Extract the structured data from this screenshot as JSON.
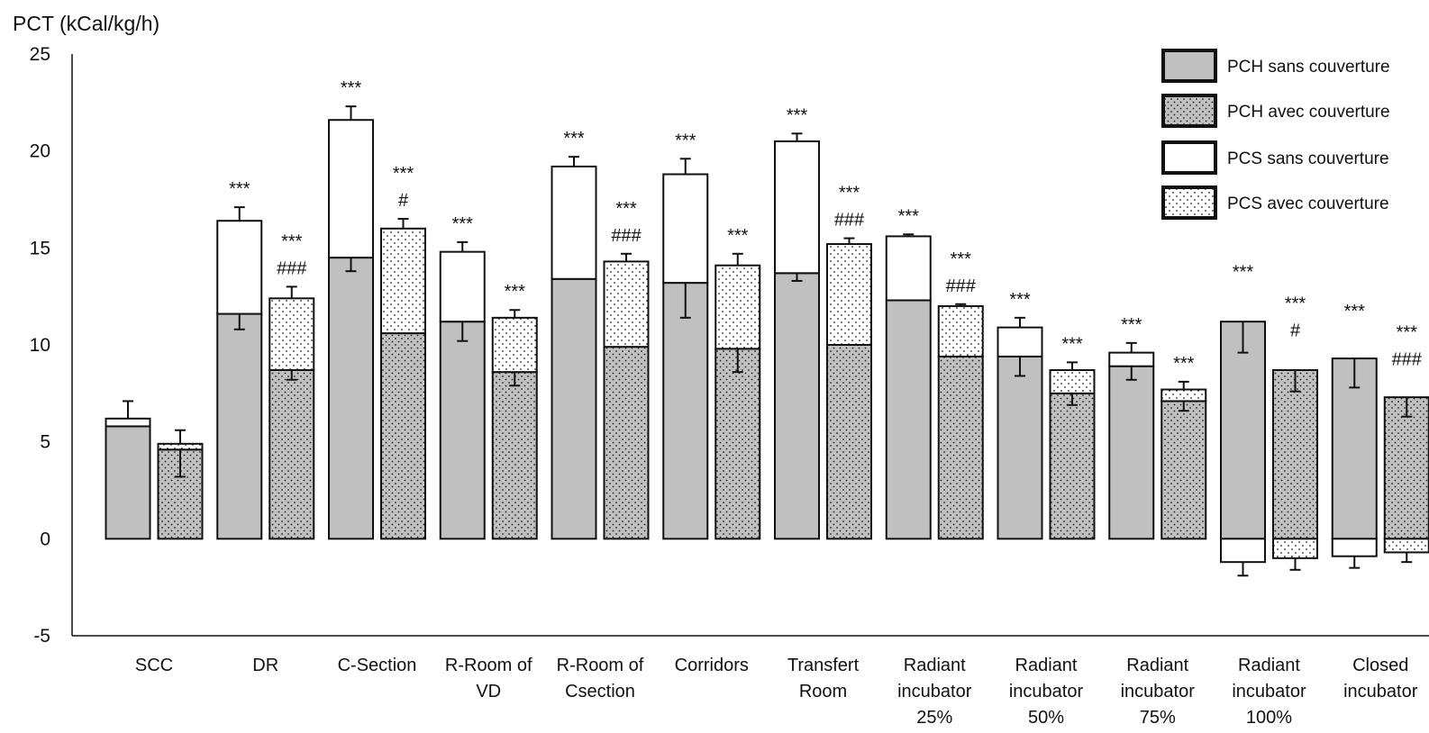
{
  "chart_data": {
    "type": "bar",
    "stacked": true,
    "title": "",
    "ylabel": "PCT (kCal/kg/h)",
    "xlabel": "",
    "ylim": [
      -5,
      25
    ],
    "yticks": [
      -5,
      0,
      5,
      10,
      15,
      20,
      25
    ],
    "grid": false,
    "legend_position": "top-right",
    "colors": {
      "pch_fill": "#c0c0c0",
      "pcs_fill": "#ffffff",
      "stroke": "#111111"
    },
    "categories": [
      "SCC",
      "DR",
      "C-Section",
      "R-Room of VD",
      "R-Room of Csection",
      "Corridors",
      "Transfert Room",
      "Radiant incubator 25%",
      "Radiant incubator 50%",
      "Radiant incubator 75%",
      "Radiant incubator 100%",
      "Closed incubator"
    ],
    "category_label_lines": [
      [
        "SCC"
      ],
      [
        "DR"
      ],
      [
        "C-Section"
      ],
      [
        "R-Room of",
        "VD"
      ],
      [
        "R-Room of",
        "Csection"
      ],
      [
        "Corridors"
      ],
      [
        "Transfert",
        "Room"
      ],
      [
        "Radiant",
        "incubator",
        "25%"
      ],
      [
        "Radiant",
        "incubator",
        "50%"
      ],
      [
        "Radiant",
        "incubator",
        "75%"
      ],
      [
        "Radiant",
        "incubator",
        "100%"
      ],
      [
        "Closed",
        "incubator"
      ]
    ],
    "legend": [
      {
        "key": "pch_sans",
        "label": "PCH sans couverture",
        "fill": "#c0c0c0",
        "pattern": "none"
      },
      {
        "key": "pch_avec",
        "label": "PCH avec couverture",
        "fill": "#c0c0c0",
        "pattern": "dots"
      },
      {
        "key": "pcs_sans",
        "label": "PCS sans couverture",
        "fill": "#ffffff",
        "pattern": "none"
      },
      {
        "key": "pcs_avec",
        "label": "PCS avec couverture",
        "fill": "#ffffff",
        "pattern": "dots"
      }
    ],
    "bars": [
      {
        "category": 0,
        "cover": "sans",
        "pch": 5.8,
        "pch_err": null,
        "pcs": 0.4,
        "pcs_err": 0.9,
        "sig": []
      },
      {
        "category": 0,
        "cover": "avec",
        "pch": 4.6,
        "pch_err": 1.4,
        "pcs": 0.3,
        "pcs_err": 0.7,
        "sig": []
      },
      {
        "category": 1,
        "cover": "sans",
        "pch": 11.6,
        "pch_err": 0.8,
        "pcs": 4.8,
        "pcs_err": 0.7,
        "sig": [
          "***"
        ]
      },
      {
        "category": 1,
        "cover": "avec",
        "pch": 8.7,
        "pch_err": 0.5,
        "pcs": 3.7,
        "pcs_err": 0.6,
        "sig": [
          "***",
          "###"
        ]
      },
      {
        "category": 2,
        "cover": "sans",
        "pch": 14.5,
        "pch_err": 0.7,
        "pcs": 7.1,
        "pcs_err": 0.7,
        "sig": [
          "***"
        ]
      },
      {
        "category": 2,
        "cover": "avec",
        "pch": 10.6,
        "pch_err": null,
        "pcs": 5.4,
        "pcs_err": 0.5,
        "sig": [
          "***",
          "#"
        ]
      },
      {
        "category": 3,
        "cover": "sans",
        "pch": 11.2,
        "pch_err": 1.0,
        "pcs": 3.6,
        "pcs_err": 0.5,
        "sig": [
          "***"
        ]
      },
      {
        "category": 3,
        "cover": "avec",
        "pch": 8.6,
        "pch_err": 0.7,
        "pcs": 2.8,
        "pcs_err": 0.4,
        "sig": [
          "***"
        ]
      },
      {
        "category": 4,
        "cover": "sans",
        "pch": 13.4,
        "pch_err": null,
        "pcs": 5.8,
        "pcs_err": 0.5,
        "sig": [
          "***"
        ]
      },
      {
        "category": 4,
        "cover": "avec",
        "pch": 9.9,
        "pch_err": null,
        "pcs": 4.4,
        "pcs_err": 0.4,
        "sig": [
          "***",
          "###"
        ]
      },
      {
        "category": 5,
        "cover": "sans",
        "pch": 13.2,
        "pch_err": 1.8,
        "pcs": 5.6,
        "pcs_err": 0.8,
        "sig": [
          "***"
        ]
      },
      {
        "category": 5,
        "cover": "avec",
        "pch": 9.8,
        "pch_err": 1.2,
        "pcs": 4.3,
        "pcs_err": 0.6,
        "sig": [
          "***"
        ]
      },
      {
        "category": 6,
        "cover": "sans",
        "pch": 13.7,
        "pch_err": 0.4,
        "pcs": 6.8,
        "pcs_err": 0.4,
        "sig": [
          "***"
        ]
      },
      {
        "category": 6,
        "cover": "avec",
        "pch": 10.0,
        "pch_err": null,
        "pcs": 5.2,
        "pcs_err": 0.3,
        "sig": [
          "***",
          "###"
        ]
      },
      {
        "category": 7,
        "cover": "sans",
        "pch": 12.3,
        "pch_err": null,
        "pcs": 3.3,
        "pcs_err": 0.1,
        "sig": [
          "***"
        ]
      },
      {
        "category": 7,
        "cover": "avec",
        "pch": 9.4,
        "pch_err": null,
        "pcs": 2.6,
        "pcs_err": 0.1,
        "sig": [
          "***",
          "###"
        ]
      },
      {
        "category": 8,
        "cover": "sans",
        "pch": 9.4,
        "pch_err": 1.0,
        "pcs": 1.5,
        "pcs_err": 0.5,
        "sig": [
          "***"
        ]
      },
      {
        "category": 8,
        "cover": "avec",
        "pch": 7.5,
        "pch_err": 0.6,
        "pcs": 1.2,
        "pcs_err": 0.4,
        "sig": [
          "***"
        ]
      },
      {
        "category": 9,
        "cover": "sans",
        "pch": 8.9,
        "pch_err": 0.7,
        "pcs": 0.7,
        "pcs_err": 0.5,
        "sig": [
          "***"
        ]
      },
      {
        "category": 9,
        "cover": "avec",
        "pch": 7.1,
        "pch_err": 0.5,
        "pcs": 0.6,
        "pcs_err": 0.4,
        "sig": [
          "***"
        ]
      },
      {
        "category": 10,
        "cover": "sans",
        "pch": 11.2,
        "pch_err": 1.6,
        "pcs": -1.2,
        "pcs_err": 0.7,
        "sig": [
          "***"
        ]
      },
      {
        "category": 10,
        "cover": "avec",
        "pch": 8.7,
        "pch_err": 1.1,
        "pcs": -1.0,
        "pcs_err": 0.6,
        "sig": [
          "***",
          "#"
        ]
      },
      {
        "category": 11,
        "cover": "sans",
        "pch": 9.3,
        "pch_err": 1.5,
        "pcs": -0.9,
        "pcs_err": 0.6,
        "sig": [
          "***"
        ]
      },
      {
        "category": 11,
        "cover": "avec",
        "pch": 7.3,
        "pch_err": 1.0,
        "pcs": -0.7,
        "pcs_err": 0.5,
        "sig": [
          "***",
          "###"
        ]
      }
    ]
  }
}
